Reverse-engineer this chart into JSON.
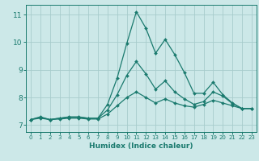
{
  "title": "",
  "xlabel": "Humidex (Indice chaleur)",
  "background_color": "#cce8e8",
  "line_color": "#1a7a6e",
  "grid_color": "#a8cccc",
  "xlim": [
    -0.5,
    23.5
  ],
  "ylim": [
    6.75,
    11.35
  ],
  "yticks": [
    7,
    8,
    9,
    10,
    11
  ],
  "xticks": [
    0,
    1,
    2,
    3,
    4,
    5,
    6,
    7,
    8,
    9,
    10,
    11,
    12,
    13,
    14,
    15,
    16,
    17,
    18,
    19,
    20,
    21,
    22,
    23
  ],
  "lines": [
    {
      "x": [
        0,
        1,
        2,
        3,
        4,
        5,
        6,
        7,
        8,
        9,
        10,
        11,
        12,
        13,
        14,
        15,
        16,
        17,
        18,
        19,
        20,
        21,
        22,
        23
      ],
      "y": [
        7.2,
        7.3,
        7.2,
        7.25,
        7.3,
        7.3,
        7.25,
        7.25,
        7.75,
        8.7,
        9.95,
        11.1,
        10.5,
        9.6,
        10.1,
        9.55,
        8.9,
        8.15,
        8.15,
        8.55,
        8.1,
        7.8,
        7.6,
        7.6
      ]
    },
    {
      "x": [
        0,
        1,
        2,
        3,
        4,
        5,
        6,
        7,
        8,
        9,
        10,
        11,
        12,
        13,
        14,
        15,
        16,
        17,
        18,
        19,
        20,
        21,
        22,
        23
      ],
      "y": [
        7.2,
        7.28,
        7.2,
        7.25,
        7.28,
        7.28,
        7.25,
        7.25,
        7.55,
        8.1,
        8.8,
        9.3,
        8.85,
        8.3,
        8.6,
        8.2,
        7.95,
        7.75,
        7.85,
        8.2,
        8.05,
        7.78,
        7.6,
        7.6
      ]
    },
    {
      "x": [
        0,
        1,
        2,
        3,
        4,
        5,
        6,
        7,
        8,
        9,
        10,
        11,
        12,
        13,
        14,
        15,
        16,
        17,
        18,
        19,
        20,
        21,
        22,
        23
      ],
      "y": [
        7.2,
        7.25,
        7.2,
        7.22,
        7.25,
        7.25,
        7.22,
        7.22,
        7.4,
        7.7,
        8.0,
        8.2,
        8.0,
        7.8,
        7.95,
        7.8,
        7.7,
        7.65,
        7.75,
        7.9,
        7.8,
        7.7,
        7.6,
        7.6
      ]
    }
  ]
}
